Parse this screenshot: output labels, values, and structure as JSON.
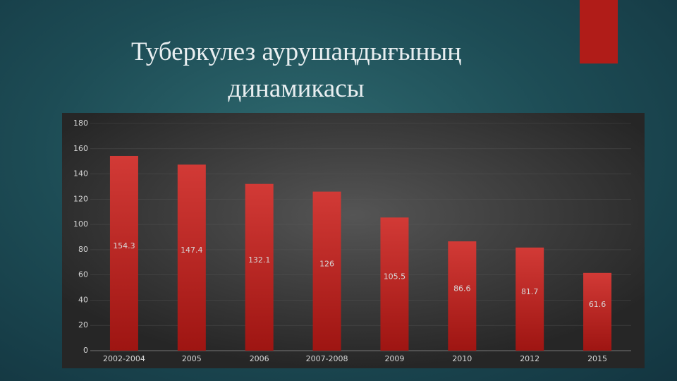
{
  "chart_data": {
    "type": "bar",
    "title": "Туберкулез аурушаңдығының динамикасы",
    "categories": [
      "2002-2004",
      "2005",
      "2006",
      "2007-2008",
      "2009",
      "2010",
      "2012",
      "2015"
    ],
    "values": [
      154.3,
      147.4,
      132.1,
      126,
      105.5,
      86.6,
      81.7,
      61.6
    ],
    "color": "#c42a26",
    "ylim": [
      0,
      180
    ],
    "yticks": [
      0,
      20,
      40,
      60,
      80,
      100,
      120,
      140,
      160,
      180
    ],
    "grid": true
  }
}
